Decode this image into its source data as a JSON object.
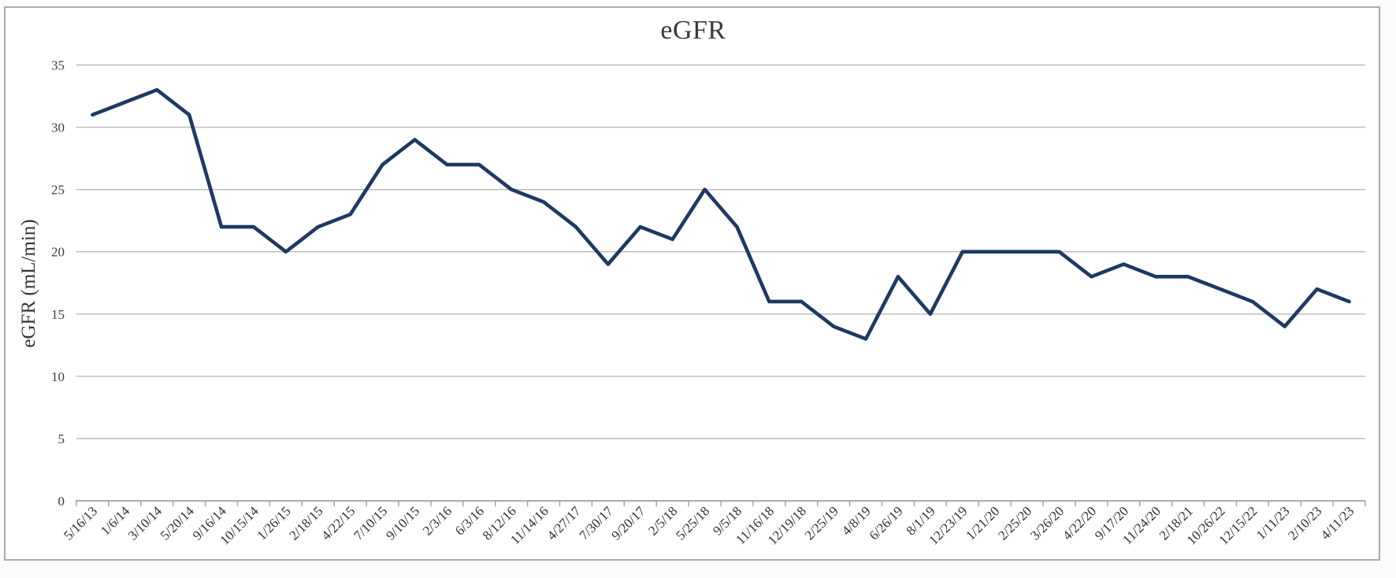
{
  "window": {
    "background_color": "#ffffff",
    "frame_border_color": "#ababab"
  },
  "chart_data": {
    "type": "line",
    "title": "eGFR",
    "xlabel": "",
    "ylabel": "eGFR (mL/min)",
    "legend_position": "none",
    "grid": true,
    "ylim": [
      0,
      35
    ],
    "yticks": [
      0,
      5,
      10,
      15,
      20,
      25,
      30,
      35
    ],
    "categories": [
      "5/16/13",
      "1/6/14",
      "3/10/14",
      "5/20/14",
      "9/16/14",
      "10/15/14",
      "1/26/15",
      "2/18/15",
      "4/22/15",
      "7/10/15",
      "9/10/15",
      "2/3/16",
      "6/3/16",
      "8/12/16",
      "11/14/16",
      "4/27/17",
      "7/30/17",
      "9/20/17",
      "2/5/18",
      "5/25/18",
      "9/5/18",
      "11/16/18",
      "12/19/18",
      "2/25/19",
      "4/8/19",
      "6/26/19",
      "8/1/19",
      "12/23/19",
      "1/21/20",
      "2/25/20",
      "3/26/20",
      "4/22/20",
      "9/17/20",
      "11/24/20",
      "2/18/21",
      "10/26/22",
      "12/15/22",
      "1/11/23",
      "2/10/23",
      "4/11/23"
    ],
    "series": [
      {
        "name": "eGFR",
        "values": [
          31,
          32,
          33,
          31,
          22,
          22,
          20,
          22,
          23,
          27,
          29,
          27,
          27,
          25,
          24,
          22,
          19,
          22,
          21,
          25,
          22,
          16,
          16,
          14,
          13,
          18,
          15,
          20,
          20,
          20,
          20,
          18,
          19,
          18,
          18,
          17,
          16,
          14,
          17,
          16
        ]
      }
    ],
    "colors": {
      "line": "#1f3864",
      "gridline": "#b8b8b8",
      "axis": "#9e9e9e",
      "tick_text": "#3d3d3d",
      "title_text": "#3a3a3a"
    }
  }
}
